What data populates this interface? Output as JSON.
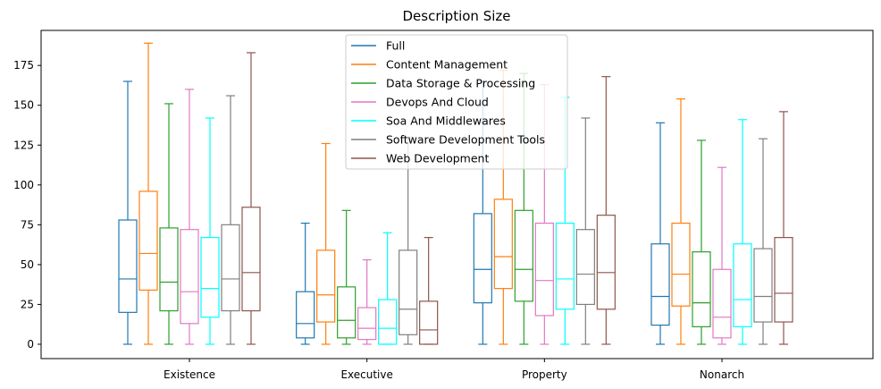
{
  "chart_data": {
    "type": "boxplot",
    "title": "Description Size",
    "xlabel": "",
    "ylabel": "",
    "ylim": [
      -9,
      197
    ],
    "yticks": [
      0,
      25,
      50,
      75,
      100,
      125,
      150,
      175
    ],
    "categories": [
      "Existence",
      "Executive",
      "Property",
      "Nonarch"
    ],
    "legend_position": "upper center",
    "grid": false,
    "series": [
      {
        "name": "Full",
        "color": "#1f77b4",
        "boxes": [
          {
            "whislo": 0,
            "q1": 20,
            "med": 41,
            "q3": 78,
            "whishi": 165
          },
          {
            "whislo": 0,
            "q1": 4,
            "med": 13,
            "q3": 33,
            "whishi": 76
          },
          {
            "whislo": 0,
            "q1": 26,
            "med": 47,
            "q3": 82,
            "whishi": 165
          },
          {
            "whislo": 0,
            "q1": 12,
            "med": 30,
            "q3": 63,
            "whishi": 139
          }
        ]
      },
      {
        "name": "Content Management",
        "color": "#ff7f0e",
        "boxes": [
          {
            "whislo": 0,
            "q1": 34,
            "med": 57,
            "q3": 96,
            "whishi": 189
          },
          {
            "whislo": 0,
            "q1": 14,
            "med": 31,
            "q3": 59,
            "whishi": 126
          },
          {
            "whislo": 0,
            "q1": 35,
            "med": 55,
            "q3": 91,
            "whishi": 172
          },
          {
            "whislo": 0,
            "q1": 24,
            "med": 44,
            "q3": 76,
            "whishi": 154
          }
        ]
      },
      {
        "name": "Data Storage & Processing",
        "color": "#2ca02c",
        "boxes": [
          {
            "whislo": 0,
            "q1": 21,
            "med": 39,
            "q3": 73,
            "whishi": 151
          },
          {
            "whislo": 0,
            "q1": 4,
            "med": 15,
            "q3": 36,
            "whishi": 84
          },
          {
            "whislo": 0,
            "q1": 27,
            "med": 47,
            "q3": 84,
            "whishi": 170
          },
          {
            "whislo": 0,
            "q1": 11,
            "med": 26,
            "q3": 58,
            "whishi": 128
          }
        ]
      },
      {
        "name": "Devops And Cloud",
        "color": "#e377c2",
        "boxes": [
          {
            "whislo": 0,
            "q1": 13,
            "med": 33,
            "q3": 72,
            "whishi": 160
          },
          {
            "whislo": 0,
            "q1": 3,
            "med": 10,
            "q3": 23,
            "whishi": 53
          },
          {
            "whislo": 0,
            "q1": 18,
            "med": 40,
            "q3": 76,
            "whishi": 163
          },
          {
            "whislo": 0,
            "q1": 4,
            "med": 17,
            "q3": 47,
            "whishi": 111
          }
        ]
      },
      {
        "name": "Soa And Middlewares",
        "color": "#00ffff",
        "boxes": [
          {
            "whislo": 0,
            "q1": 17,
            "med": 35,
            "q3": 67,
            "whishi": 142
          },
          {
            "whislo": 0,
            "q1": 0,
            "med": 10,
            "q3": 28,
            "whishi": 70
          },
          {
            "whislo": 0,
            "q1": 22,
            "med": 41,
            "q3": 76,
            "whishi": 155
          },
          {
            "whislo": 0,
            "q1": 11,
            "med": 28,
            "q3": 63,
            "whishi": 141
          }
        ]
      },
      {
        "name": "Software Development Tools",
        "color": "#7f7f7f",
        "boxes": [
          {
            "whislo": 0,
            "q1": 21,
            "med": 41,
            "q3": 75,
            "whishi": 156
          },
          {
            "whislo": 0,
            "q1": 6,
            "med": 22,
            "q3": 59,
            "whishi": 130
          },
          {
            "whislo": 0,
            "q1": 25,
            "med": 44,
            "q3": 72,
            "whishi": 142
          },
          {
            "whislo": 0,
            "q1": 14,
            "med": 30,
            "q3": 60,
            "whishi": 129
          }
        ]
      },
      {
        "name": "Web Development",
        "color": "#8c564b",
        "boxes": [
          {
            "whislo": 0,
            "q1": 21,
            "med": 45,
            "q3": 86,
            "whishi": 183
          },
          {
            "whislo": 0,
            "q1": 0,
            "med": 9,
            "q3": 27,
            "whishi": 67
          },
          {
            "whislo": 0,
            "q1": 22,
            "med": 45,
            "q3": 81,
            "whishi": 168
          },
          {
            "whislo": 0,
            "q1": 14,
            "med": 32,
            "q3": 67,
            "whishi": 146
          }
        ]
      }
    ]
  }
}
